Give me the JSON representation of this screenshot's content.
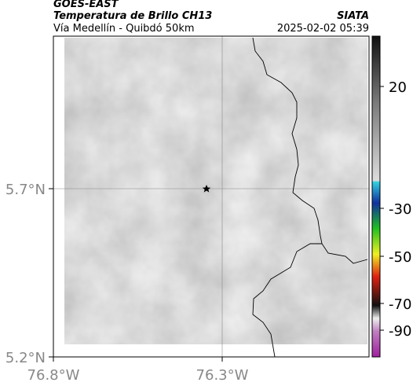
{
  "header": {
    "satellite": "GOES-EAST",
    "product": "Temperatura de Brillo CH13",
    "region": "Vía Medellín - Quibdó 50km",
    "source": "SIATA",
    "timestamp": "2025-02-02 05:39"
  },
  "map": {
    "lat_labels": [
      "5.7°N",
      "5.2°N"
    ],
    "lon_labels": [
      "76.8°W",
      "76.3°W"
    ]
  },
  "colorbar": {
    "ticks": [
      20,
      -30,
      -50,
      -70,
      -90
    ]
  }
}
